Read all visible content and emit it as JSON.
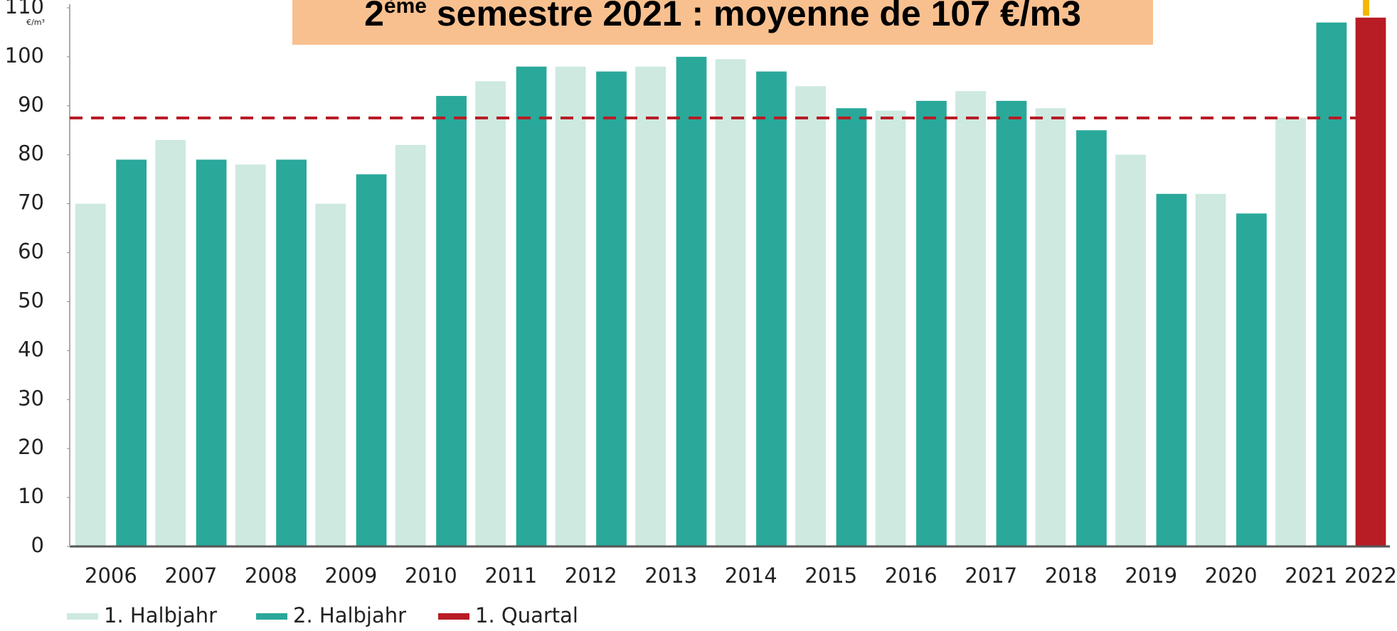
{
  "chart_data": {
    "type": "bar",
    "title": [
      "2",
      "ème",
      " semestre 2021 : moyenne de 107 €/m3"
    ],
    "y_unit": "€/m³",
    "categories": [
      "2006",
      "2007",
      "2008",
      "2009",
      "2010",
      "2011",
      "2012",
      "2013",
      "2014",
      "2015",
      "2016",
      "2017",
      "2018",
      "2019",
      "2020",
      "2021",
      "2022"
    ],
    "series": [
      {
        "name": "1. Halbjahr",
        "color": "#cde9e0",
        "values": [
          70,
          83,
          78,
          70,
          82,
          95,
          98,
          98,
          99.5,
          94,
          89,
          93,
          89.5,
          80,
          72,
          87.5,
          null
        ]
      },
      {
        "name": "2. Halbjahr",
        "color": "#2aa89a",
        "values": [
          79,
          79,
          79,
          76,
          92,
          98,
          97,
          100,
          97,
          89.5,
          91,
          91,
          85,
          72,
          68,
          107,
          null
        ]
      },
      {
        "name": "1. Quartal",
        "color": "#b81c25",
        "values": [
          null,
          null,
          null,
          null,
          null,
          null,
          null,
          null,
          null,
          null,
          null,
          null,
          null,
          null,
          null,
          null,
          108
        ]
      }
    ],
    "reference_line": {
      "value": 87.5,
      "color": "#b81c25"
    },
    "ylim": [
      0,
      110
    ],
    "yticks": [
      0,
      10,
      20,
      30,
      40,
      50,
      60,
      70,
      80,
      90,
      100,
      110
    ],
    "legend": "bottom-left"
  }
}
